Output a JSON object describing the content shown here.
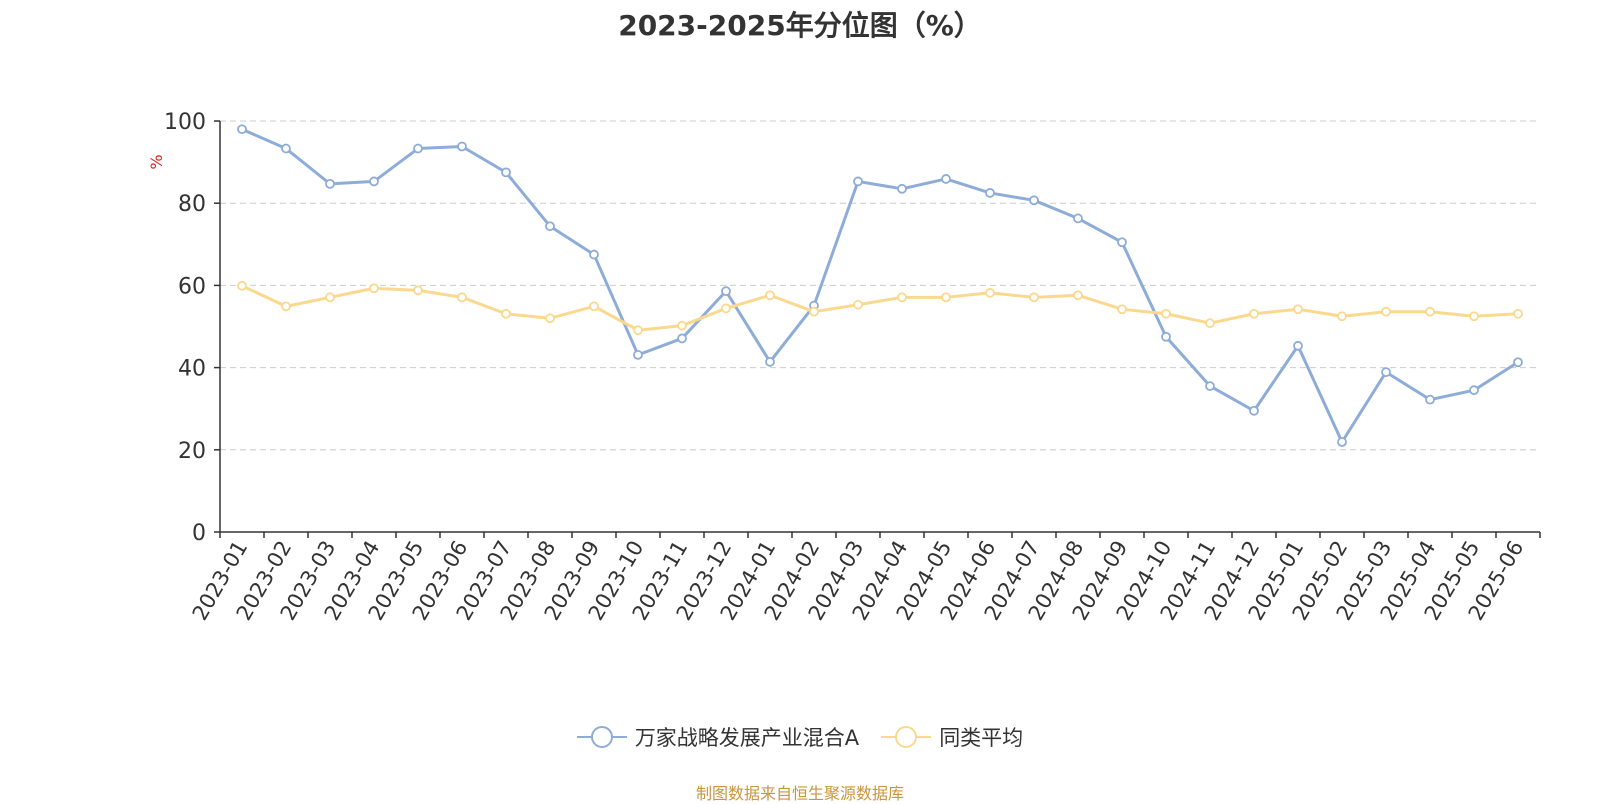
{
  "chart_data": {
    "type": "line",
    "title": "2023-2025年分位图（%）",
    "ylabel": "%",
    "xlabel": "",
    "ylim": [
      0,
      100
    ],
    "yticks": [
      "0",
      "20",
      "40",
      "60",
      "80",
      "100"
    ],
    "grid": true,
    "legend_position": "bottom-center",
    "categories": [
      "2023-01",
      "2023-02",
      "2023-03",
      "2023-04",
      "2023-05",
      "2023-06",
      "2023-07",
      "2023-08",
      "2023-09",
      "2023-10",
      "2023-11",
      "2023-12",
      "2024-01",
      "2024-02",
      "2024-03",
      "2024-04",
      "2024-05",
      "2024-06",
      "2024-07",
      "2024-08",
      "2024-09",
      "2024-10",
      "2024-11",
      "2024-12",
      "2025-01",
      "2025-02",
      "2025-03",
      "2025-04",
      "2025-05",
      "2025-06"
    ],
    "series": [
      {
        "name": "万家战略发展产业混合A",
        "color": "#8eacd8",
        "values": [
          98,
          93.3,
          84.7,
          85.3,
          93.3,
          93.8,
          87.5,
          74.4,
          67.5,
          43.1,
          47.1,
          58.6,
          41.4,
          55.1,
          85.3,
          83.5,
          85.9,
          82.5,
          80.7,
          76.3,
          70.5,
          47.5,
          35.5,
          29.5,
          45.3,
          21.9,
          38.9,
          32.2,
          34.5,
          41.3
        ]
      },
      {
        "name": "同类平均",
        "color": "#fad98f",
        "values": [
          59.9,
          54.9,
          57.1,
          59.3,
          58.8,
          57.1,
          53.1,
          52,
          54.9,
          49.1,
          50.2,
          54.4,
          57.6,
          53.6,
          55.3,
          57.1,
          57.1,
          58.2,
          57.1,
          57.6,
          54.2,
          53.1,
          50.8,
          53.1,
          54.2,
          52.5,
          53.6,
          53.6,
          52.5,
          53.1
        ]
      }
    ]
  },
  "source_note": "制图数据来自恒生聚源数据库",
  "colors": {
    "axis": "#333333",
    "grid": "#cccccc",
    "ylabel": "#e02020",
    "source": "#c8963c"
  }
}
